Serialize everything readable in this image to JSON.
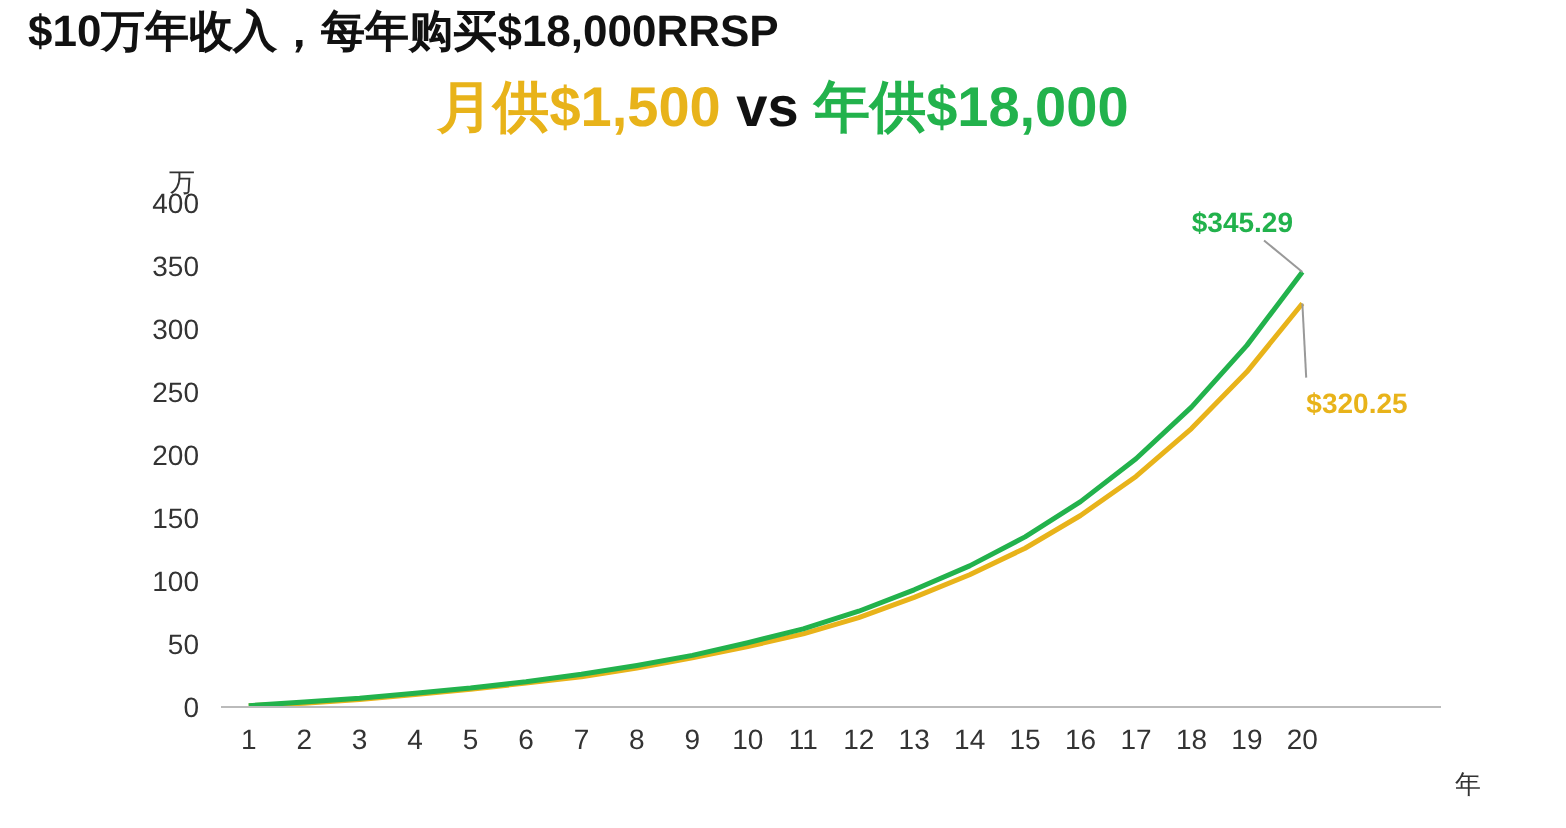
{
  "chart_data": {
    "type": "line",
    "title": "$10万年收入，每年购买$18,000RRSP",
    "subtitle": "vs",
    "ylabel": "万",
    "xlabel": "年",
    "x": [
      1,
      2,
      3,
      4,
      5,
      6,
      7,
      8,
      9,
      10,
      11,
      12,
      13,
      14,
      15,
      16,
      17,
      18,
      19,
      20
    ],
    "xlim": [
      0.5,
      22.5
    ],
    "xticks": [
      1,
      2,
      3,
      4,
      5,
      6,
      7,
      8,
      9,
      10,
      11,
      12,
      13,
      14,
      15,
      16,
      17,
      18,
      19,
      20
    ],
    "ylim": [
      0,
      400
    ],
    "yticks": [
      0,
      50,
      100,
      150,
      200,
      250,
      300,
      350,
      400
    ],
    "grid": false,
    "marker": "none",
    "line_style": "solid",
    "series": [
      {
        "name": "月供$1,500",
        "color": "#e8b31a",
        "values": [
          1,
          3,
          6,
          10,
          14,
          19,
          24,
          31,
          39,
          48,
          58,
          71,
          87,
          105,
          126,
          152,
          183,
          221,
          266,
          320.25
        ]
      },
      {
        "name": "年供$18,000",
        "color": "#22b24c",
        "values": [
          1,
          4,
          7,
          11,
          15,
          20,
          26,
          33,
          41,
          51,
          62,
          76,
          93,
          112,
          135,
          163,
          197,
          238,
          287,
          345.29
        ]
      }
    ],
    "annotations": [
      {
        "text": "$320.25",
        "x": 20,
        "y": 320.25
      },
      {
        "text": "$345.29",
        "x": 20,
        "y": 345.29
      }
    ]
  }
}
